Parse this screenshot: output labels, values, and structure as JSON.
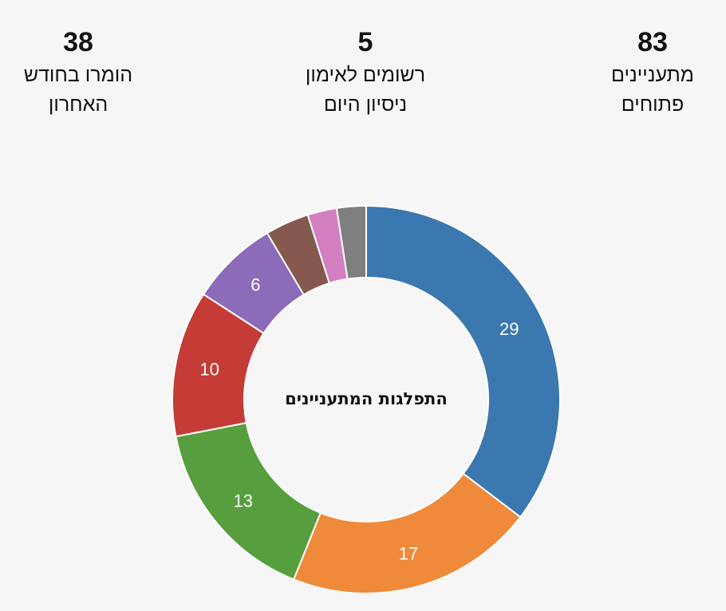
{
  "kpis": [
    {
      "value": "83",
      "label_line1": "מתעניינים",
      "label_line2": "פתוחים"
    },
    {
      "value": "5",
      "label_line1": "רשומים לאימון",
      "label_line2": "ניסיון היום"
    },
    {
      "value": "38",
      "label_line1": "הומרו בחודש",
      "label_line2": "האחרון"
    }
  ],
  "chart_data": {
    "type": "pie",
    "donut": true,
    "center_title": "התפלגות המתעניינים",
    "values": [
      29,
      17,
      13,
      10,
      6,
      3,
      2,
      2
    ],
    "value_labels": [
      "29",
      "17",
      "13",
      "10",
      "6",
      "",
      "",
      ""
    ],
    "colors": [
      "#3b78b0",
      "#ef8a3a",
      "#579e3f",
      "#c53b35",
      "#8c6bb8",
      "#85594d",
      "#d37fc2",
      "#7f7f7f"
    ],
    "legend": "none"
  }
}
